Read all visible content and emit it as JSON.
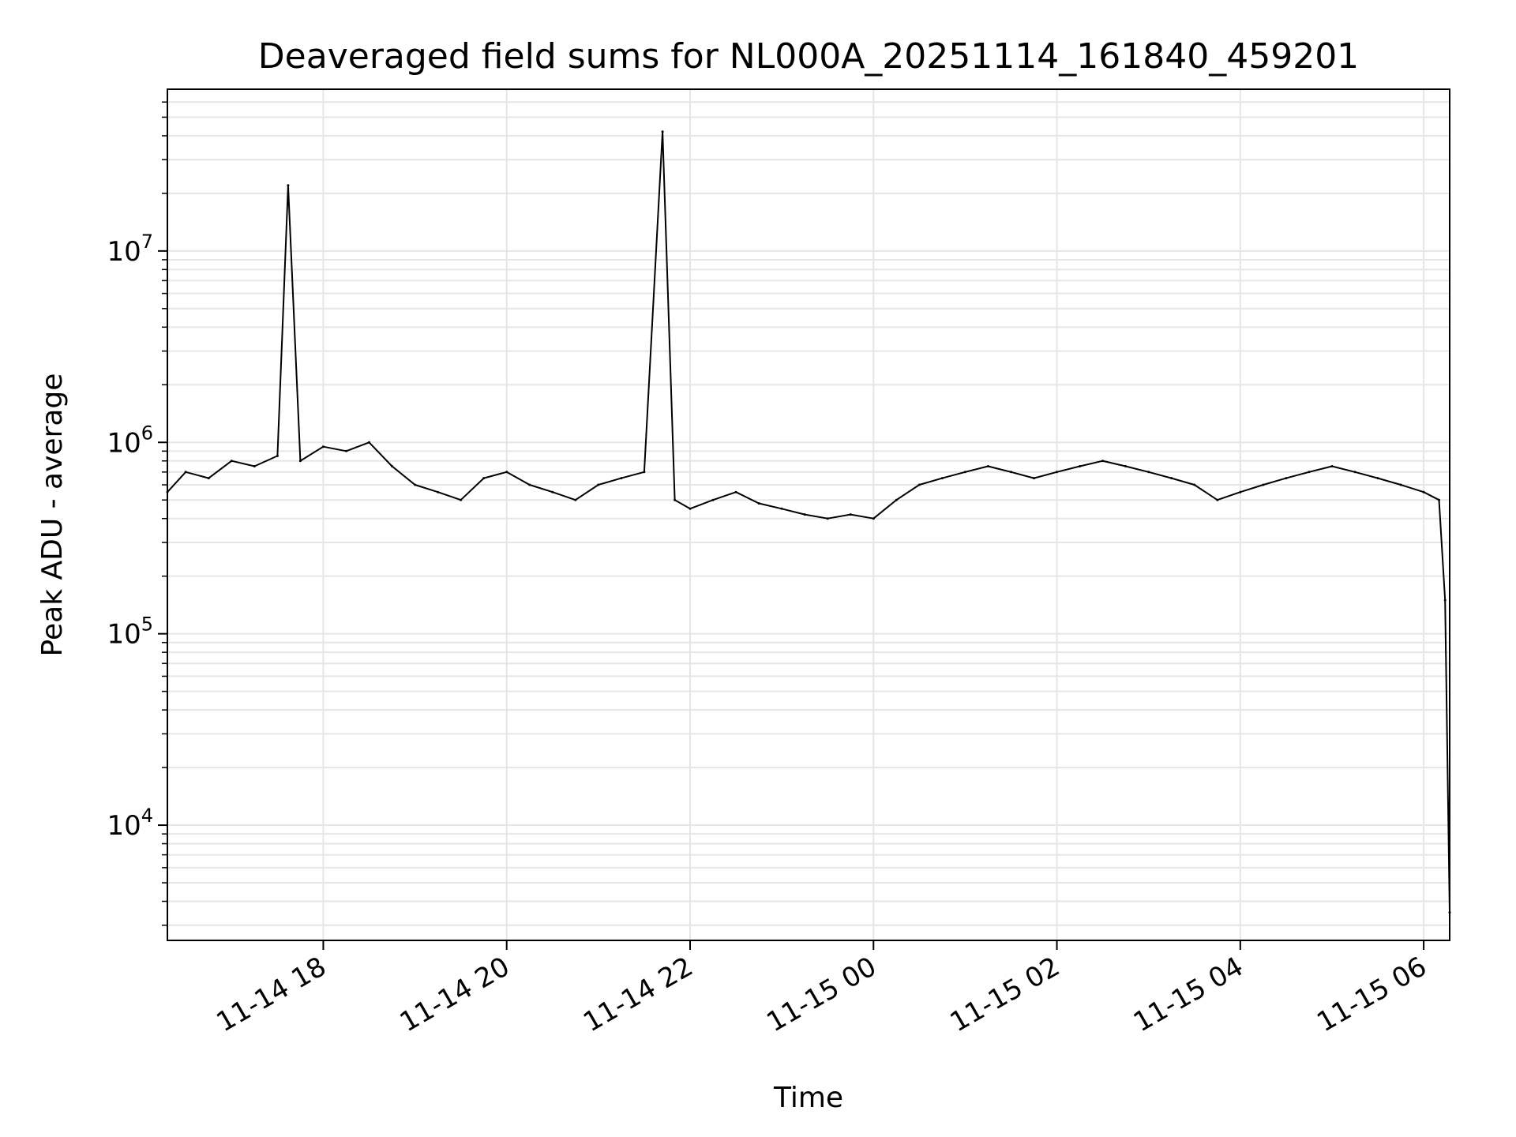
{
  "chart_data": {
    "type": "line",
    "title": "Deaveraged field sums for NL000A_20251114_161840_459201",
    "xlabel": "Time",
    "ylabel": "Peak ADU - average",
    "y_scale": "log",
    "ylim": [
      2500,
      70000000
    ],
    "xlim": [
      "2025-11-14 16:18",
      "2025-11-15 06:17"
    ],
    "grid": true,
    "line_color": "#000000",
    "grid_color": "#e6e6e6",
    "x_ticks": [
      {
        "t": "2025-11-14 18:00",
        "label": "11-14 18"
      },
      {
        "t": "2025-11-14 20:00",
        "label": "11-14 20"
      },
      {
        "t": "2025-11-14 22:00",
        "label": "11-14 22"
      },
      {
        "t": "2025-11-15 00:00",
        "label": "11-15 00"
      },
      {
        "t": "2025-11-15 02:00",
        "label": "11-15 02"
      },
      {
        "t": "2025-11-15 04:00",
        "label": "11-15 04"
      },
      {
        "t": "2025-11-15 06:00",
        "label": "11-15 06"
      }
    ],
    "y_ticks": [
      {
        "value": 10000,
        "base": "10",
        "exp": "4"
      },
      {
        "value": 100000,
        "base": "10",
        "exp": "5"
      },
      {
        "value": 1000000,
        "base": "10",
        "exp": "6"
      },
      {
        "value": 10000000,
        "base": "10",
        "exp": "7"
      }
    ],
    "series": [
      {
        "points": [
          [
            "2025-11-14 16:18",
            550000
          ],
          [
            "2025-11-14 16:30",
            700000
          ],
          [
            "2025-11-14 16:45",
            650000
          ],
          [
            "2025-11-14 17:00",
            800000
          ],
          [
            "2025-11-14 17:15",
            750000
          ],
          [
            "2025-11-14 17:30",
            850000
          ],
          [
            "2025-11-14 17:37",
            22000000
          ],
          [
            "2025-11-14 17:45",
            800000
          ],
          [
            "2025-11-14 18:00",
            950000
          ],
          [
            "2025-11-14 18:15",
            900000
          ],
          [
            "2025-11-14 18:30",
            1000000
          ],
          [
            "2025-11-14 18:45",
            750000
          ],
          [
            "2025-11-14 19:00",
            600000
          ],
          [
            "2025-11-14 19:15",
            550000
          ],
          [
            "2025-11-14 19:30",
            500000
          ],
          [
            "2025-11-14 19:45",
            650000
          ],
          [
            "2025-11-14 20:00",
            700000
          ],
          [
            "2025-11-14 20:15",
            600000
          ],
          [
            "2025-11-14 20:30",
            550000
          ],
          [
            "2025-11-14 20:45",
            500000
          ],
          [
            "2025-11-14 21:00",
            600000
          ],
          [
            "2025-11-14 21:15",
            650000
          ],
          [
            "2025-11-14 21:30",
            700000
          ],
          [
            "2025-11-14 21:42",
            42000000
          ],
          [
            "2025-11-14 21:50",
            500000
          ],
          [
            "2025-11-14 22:00",
            450000
          ],
          [
            "2025-11-14 22:15",
            500000
          ],
          [
            "2025-11-14 22:30",
            550000
          ],
          [
            "2025-11-14 22:45",
            480000
          ],
          [
            "2025-11-14 23:00",
            450000
          ],
          [
            "2025-11-14 23:15",
            420000
          ],
          [
            "2025-11-14 23:30",
            400000
          ],
          [
            "2025-11-14 23:45",
            420000
          ],
          [
            "2025-11-15 00:00",
            400000
          ],
          [
            "2025-11-15 00:15",
            500000
          ],
          [
            "2025-11-15 00:30",
            600000
          ],
          [
            "2025-11-15 00:45",
            650000
          ],
          [
            "2025-11-15 01:00",
            700000
          ],
          [
            "2025-11-15 01:15",
            750000
          ],
          [
            "2025-11-15 01:30",
            700000
          ],
          [
            "2025-11-15 01:45",
            650000
          ],
          [
            "2025-11-15 02:00",
            700000
          ],
          [
            "2025-11-15 02:15",
            750000
          ],
          [
            "2025-11-15 02:30",
            800000
          ],
          [
            "2025-11-15 02:45",
            750000
          ],
          [
            "2025-11-15 03:00",
            700000
          ],
          [
            "2025-11-15 03:15",
            650000
          ],
          [
            "2025-11-15 03:30",
            600000
          ],
          [
            "2025-11-15 03:45",
            500000
          ],
          [
            "2025-11-15 04:00",
            550000
          ],
          [
            "2025-11-15 04:15",
            600000
          ],
          [
            "2025-11-15 04:30",
            650000
          ],
          [
            "2025-11-15 04:45",
            700000
          ],
          [
            "2025-11-15 05:00",
            750000
          ],
          [
            "2025-11-15 05:15",
            700000
          ],
          [
            "2025-11-15 05:30",
            650000
          ],
          [
            "2025-11-15 05:45",
            600000
          ],
          [
            "2025-11-15 06:00",
            550000
          ],
          [
            "2025-11-15 06:10",
            500000
          ],
          [
            "2025-11-15 06:14",
            150000
          ],
          [
            "2025-11-15 06:17",
            3500
          ]
        ]
      }
    ]
  }
}
